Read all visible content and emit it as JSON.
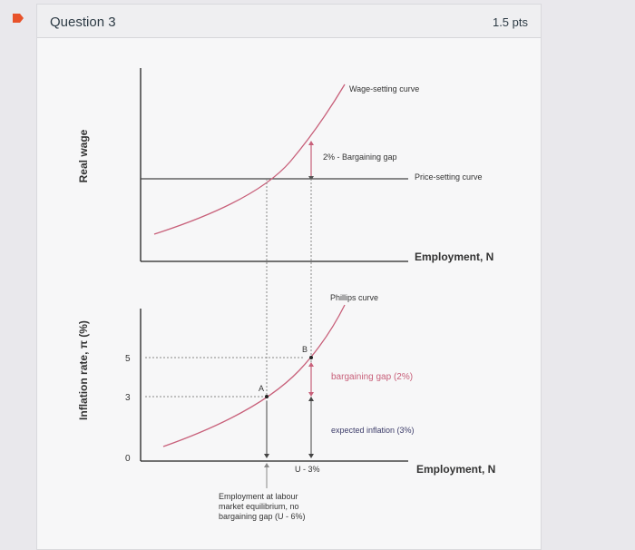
{
  "question": {
    "title": "Question 3",
    "points": "1.5 pts"
  },
  "colors": {
    "accent_marker": "#e8522a",
    "curve": "#c8607a",
    "axis": "#222222",
    "guide": "#888888"
  },
  "top_chart": {
    "y_axis_label": "Real wage",
    "x_axis_label": "Employment, N",
    "wage_setting_label": "Wage-setting curve",
    "price_setting_label": "Price-setting curve",
    "gap_label": "2% - Bargaining gap"
  },
  "bottom_chart": {
    "y_axis_label": "Inflation rate, π (%)",
    "x_axis_label": "Employment, N",
    "phillips_label": "Phillips curve",
    "bargaining_gap_label": "bargaining gap (2%)",
    "expected_inflation_label": "expected inflation (3%)",
    "tick_5": "5",
    "tick_3": "3",
    "tick_0": "0",
    "point_a": "A",
    "point_b": "B",
    "u_label": "U - 3%",
    "note_line1": "Employment at labour",
    "note_line2": "market equilibrium, no",
    "note_line3": "bargaining gap (U - 6%)"
  }
}
